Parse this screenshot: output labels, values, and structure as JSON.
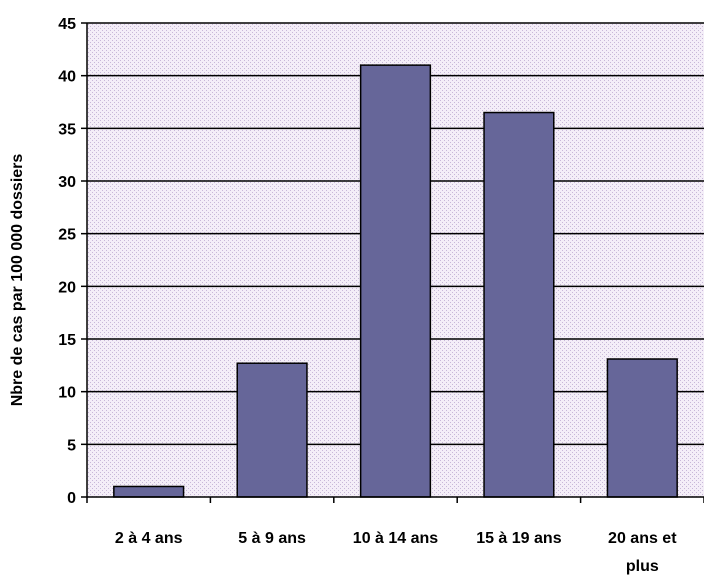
{
  "chart_data": {
    "type": "bar",
    "categories": [
      "2 à 4 ans",
      "5 à 9 ans",
      "10 à 14 ans",
      "15 à 19 ans",
      "20 ans et plus"
    ],
    "category_lines": [
      [
        "2 à 4 ans"
      ],
      [
        "5 à 9 ans"
      ],
      [
        "10 à 14 ans"
      ],
      [
        "15 à 19 ans"
      ],
      [
        "20 ans et",
        "plus"
      ]
    ],
    "values": [
      1,
      12.7,
      41,
      36.5,
      13.1
    ],
    "title": "",
    "xlabel": "",
    "ylabel": "Nbre de cas par 100 000 dossiers",
    "ylim": [
      0,
      45
    ],
    "yticks": [
      0,
      5,
      10,
      15,
      20,
      25,
      30,
      35,
      40,
      45
    ],
    "grid": true,
    "legend": "none",
    "colors": {
      "bar_fill": "#666699",
      "bar_stroke": "#000000",
      "plot_background": "#f4eef8",
      "plot_dots": "#c8b8d8",
      "gridline": "#000000",
      "axis": "#000000"
    }
  }
}
